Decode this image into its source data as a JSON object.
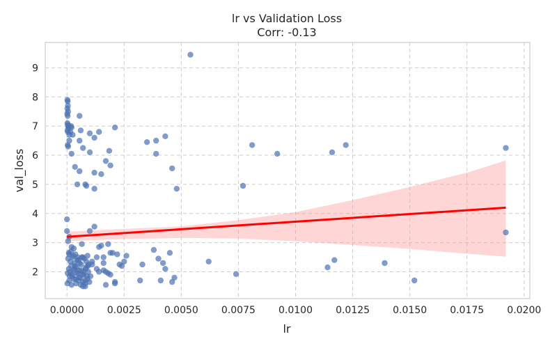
{
  "chart_data": {
    "type": "scatter",
    "title": "lr vs Validation Loss",
    "subtitle": "Corr: -0.13",
    "xlabel": "lr",
    "ylabel": "val_loss",
    "xlim": [
      -0.00095,
      0.02025
    ],
    "ylim": [
      1.08,
      9.87
    ],
    "grid": true,
    "x_ticks": [
      0.0,
      0.0025,
      0.005,
      0.0075,
      0.01,
      0.0125,
      0.015,
      0.0175,
      0.02
    ],
    "x_tick_labels": [
      "0.0000",
      "0.0025",
      "0.0050",
      "0.0075",
      "0.0100",
      "0.0125",
      "0.0150",
      "0.0175",
      "0.0200"
    ],
    "y_ticks": [
      2,
      3,
      4,
      5,
      6,
      7,
      8,
      9
    ],
    "y_tick_labels": [
      "2",
      "3",
      "4",
      "5",
      "6",
      "7",
      "8",
      "9"
    ],
    "point_color": "#4c72b0",
    "regression_color": "#ff0000",
    "ci_color": "#ff9999",
    "regression": {
      "x": [
        0.0,
        0.0192
      ],
      "y": [
        3.2,
        4.2
      ]
    },
    "confidence_band": {
      "x": [
        0.0,
        0.0025,
        0.005,
        0.0075,
        0.01,
        0.0125,
        0.015,
        0.0175,
        0.0192
      ],
      "lower": [
        3.05,
        3.12,
        3.16,
        3.14,
        3.05,
        2.92,
        2.78,
        2.62,
        2.52
      ],
      "upper": [
        3.38,
        3.47,
        3.56,
        3.77,
        4.05,
        4.46,
        4.91,
        5.4,
        5.82
      ]
    },
    "points": {
      "x": [
        2e-05,
        3e-05,
        4e-05,
        2e-05,
        5e-05,
        1e-05,
        3e-05,
        2e-05,
        4e-05,
        5e-05,
        6e-05,
        2e-05,
        4e-05,
        0.0001,
        0.00015,
        0.0002,
        0.00018,
        0.0001,
        0.00025,
        5e-05,
        3e-05,
        0.0002,
        0.00055,
        0.0006,
        0.0007,
        0.00055,
        0.001,
        0.0012,
        0.0014,
        0.0021,
        0.00185,
        0.0035,
        0.0039,
        0.0043,
        0.00055,
        0.001,
        0.0017,
        0.0012,
        0.00045,
        0.0019,
        0.0039,
        0.0046,
        0.00035,
        0.0008,
        0.00085,
        0.0015,
        0.0012,
        0.0048,
        0.0081,
        0.0092,
        0.0116,
        0.0122,
        0.0192,
        0.0054,
        0.0077,
        0.0,
        0.0,
        5e-05,
        0.0001,
        0.0012,
        0.001,
        0.0018,
        0.00065,
        0.0015,
        0.0014,
        0.0192,
        0.0001,
        0.0002,
        0.0003,
        0.0005,
        0.0007,
        0.0009,
        0.0011,
        0.0013,
        0.0016,
        0.002,
        0.0022,
        0.0026,
        0.0019,
        0.0038,
        0.0045,
        0.004,
        0.0042,
        0.0062,
        0.0117,
        0.0114,
        0.0139,
        0.0025,
        0.0023,
        0.0024,
        0.0033,
        0.0032,
        0.0017,
        0.0021,
        0.0008,
        0.0007,
        3e-05,
        8e-05,
        0.00012,
        0.00018,
        0.00022,
        0.00028,
        0.00033,
        0.00038,
        0.00042,
        0.00048,
        0.00052,
        0.00058,
        0.00062,
        0.00068,
        0.00072,
        0.00078,
        0.00082,
        0.00088,
        0.00092,
        0.00098,
        5e-05,
        0.00015,
        0.00025,
        0.00035,
        0.00045,
        0.00055,
        0.00065,
        0.00075,
        0.00085,
        0.00095,
        2e-05,
        0.0001,
        0.0002,
        0.0003,
        0.0004,
        0.0005,
        0.0006,
        0.0007,
        0.0008,
        0.0009,
        0.00013,
        0.00023,
        0.00033,
        0.00043,
        0.00053,
        0.00063,
        0.00073,
        0.00083,
        0.00093,
        0.00103,
        0.0011,
        0.0013,
        0.0014,
        0.0016,
        0.0018,
        8e-05,
        0.00017,
        0.00027,
        0.00037,
        0.00047,
        0.0041,
        0.0043,
        0.0046,
        0.0047,
        0.0074,
        0.0152,
        0.0021,
        0.0019,
        0.0017,
        0.0016
      ],
      "y": [
        7.9,
        7.85,
        7.7,
        7.6,
        7.5,
        7.42,
        7.35,
        7.1,
        7.05,
        7.0,
        6.95,
        6.85,
        6.8,
        6.7,
        6.8,
        6.95,
        7.0,
        6.5,
        6.7,
        6.3,
        6.35,
        6.05,
        7.35,
        6.85,
        6.25,
        6.5,
        6.75,
        6.6,
        6.8,
        6.95,
        6.15,
        6.45,
        6.5,
        6.65,
        5.45,
        6.1,
        5.8,
        5.4,
        5.0,
        5.65,
        6.05,
        5.55,
        5.6,
        5.0,
        4.95,
        5.35,
        4.85,
        4.85,
        6.35,
        6.05,
        6.1,
        6.35,
        6.25,
        9.45,
        4.95,
        3.8,
        3.4,
        3.05,
        3.2,
        3.55,
        3.4,
        2.95,
        2.95,
        2.9,
        2.85,
        3.35,
        2.6,
        2.85,
        2.8,
        2.4,
        2.5,
        2.55,
        2.35,
        2.5,
        2.5,
        2.65,
        2.6,
        2.55,
        2.65,
        2.75,
        2.65,
        2.45,
        2.3,
        2.35,
        2.4,
        2.15,
        2.3,
        2.35,
        2.25,
        2.2,
        2.25,
        1.7,
        1.55,
        1.6,
        1.5,
        1.5,
        1.95,
        2.1,
        1.85,
        2.2,
        1.9,
        2.05,
        2.3,
        1.75,
        2.15,
        1.95,
        2.05,
        1.8,
        2.25,
        1.9,
        2.0,
        1.7,
        2.1,
        1.85,
        2.2,
        1.65,
        2.45,
        2.35,
        2.5,
        2.2,
        2.4,
        2.3,
        2.5,
        2.45,
        2.35,
        2.25,
        1.6,
        1.7,
        1.55,
        1.75,
        1.6,
        1.7,
        1.55,
        1.65,
        1.6,
        1.75,
        2.0,
        1.85,
        2.1,
        1.95,
        1.8,
        2.05,
        1.9,
        2.15,
        2.0,
        1.85,
        2.25,
        2.1,
        2.0,
        2.05,
        1.95,
        2.65,
        2.7,
        2.55,
        2.6,
        2.5,
        1.7,
        2.1,
        1.65,
        1.8,
        1.92,
        1.7,
        1.65,
        1.9,
        2.0,
        2.3
      ]
    }
  }
}
